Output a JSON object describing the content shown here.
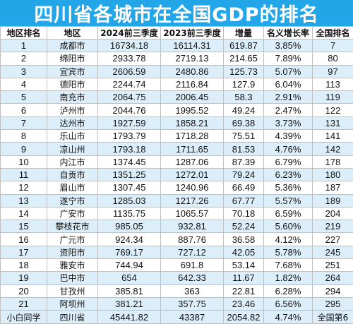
{
  "title": "四川省各城市在全国GDP的排名",
  "headers": [
    "地区排名",
    "地区",
    "2024前三季度",
    "2023前三季度",
    "增量",
    "名义增长率",
    "全国排名"
  ],
  "rows": [
    {
      "rank": "1",
      "city": "成都市",
      "gdp2024": "16734.18",
      "gdp2023": "16114.31",
      "increase": "619.87",
      "growth": "3.85%",
      "national": "7"
    },
    {
      "rank": "2",
      "city": "绵阳市",
      "gdp2024": "2933.78",
      "gdp2023": "2719.13",
      "increase": "214.65",
      "growth": "7.89%",
      "national": "80"
    },
    {
      "rank": "3",
      "city": "宜宾市",
      "gdp2024": "2606.59",
      "gdp2023": "2480.86",
      "increase": "125.73",
      "growth": "5.07%",
      "national": "97"
    },
    {
      "rank": "4",
      "city": "德阳市",
      "gdp2024": "2244.74",
      "gdp2023": "2116.84",
      "increase": "127.9",
      "growth": "6.04%",
      "national": "113"
    },
    {
      "rank": "5",
      "city": "南充市",
      "gdp2024": "2064.75",
      "gdp2023": "2006.45",
      "increase": "58.3",
      "growth": "2.91%",
      "national": "119"
    },
    {
      "rank": "6",
      "city": "泸州市",
      "gdp2024": "2044.76",
      "gdp2023": "1995.52",
      "increase": "49.24",
      "growth": "2.47%",
      "national": "122"
    },
    {
      "rank": "7",
      "city": "达州市",
      "gdp2024": "1927.59",
      "gdp2023": "1858.21",
      "increase": "69.38",
      "growth": "3.73%",
      "national": "131"
    },
    {
      "rank": "8",
      "city": "乐山市",
      "gdp2024": "1793.79",
      "gdp2023": "1718.28",
      "increase": "75.51",
      "growth": "4.39%",
      "national": "141"
    },
    {
      "rank": "9",
      "city": "凉山州",
      "gdp2024": "1793.18",
      "gdp2023": "1711.65",
      "increase": "81.53",
      "growth": "4.76%",
      "national": "142"
    },
    {
      "rank": "10",
      "city": "内江市",
      "gdp2024": "1374.45",
      "gdp2023": "1287.06",
      "increase": "87.39",
      "growth": "6.79%",
      "national": "178"
    },
    {
      "rank": "11",
      "city": "自贡市",
      "gdp2024": "1351.25",
      "gdp2023": "1272.01",
      "increase": "79.24",
      "growth": "6.23%",
      "national": "180"
    },
    {
      "rank": "12",
      "city": "眉山市",
      "gdp2024": "1307.45",
      "gdp2023": "1240.96",
      "increase": "66.49",
      "growth": "5.36%",
      "national": "187"
    },
    {
      "rank": "13",
      "city": "遂宁市",
      "gdp2024": "1285.03",
      "gdp2023": "1217.26",
      "increase": "67.77",
      "growth": "5.57%",
      "national": "189"
    },
    {
      "rank": "14",
      "city": "广安市",
      "gdp2024": "1135.75",
      "gdp2023": "1065.57",
      "increase": "70.18",
      "growth": "6.59%",
      "national": "204"
    },
    {
      "rank": "15",
      "city": "攀枝花市",
      "gdp2024": "985.05",
      "gdp2023": "932.81",
      "increase": "52.24",
      "growth": "5.60%",
      "national": "219"
    },
    {
      "rank": "16",
      "city": "广元市",
      "gdp2024": "924.34",
      "gdp2023": "887.76",
      "increase": "36.58",
      "growth": "4.12%",
      "national": "227"
    },
    {
      "rank": "17",
      "city": "资阳市",
      "gdp2024": "769.17",
      "gdp2023": "727.12",
      "increase": "42.05",
      "growth": "5.78%",
      "national": "245"
    },
    {
      "rank": "18",
      "city": "雅安市",
      "gdp2024": "744.94",
      "gdp2023": "691.8",
      "increase": "53.14",
      "growth": "7.68%",
      "national": "251"
    },
    {
      "rank": "19",
      "city": "巴中市",
      "gdp2024": "654",
      "gdp2023": "642.33",
      "increase": "11.67",
      "growth": "1.82%",
      "national": "264"
    },
    {
      "rank": "20",
      "city": "甘孜州",
      "gdp2024": "385.81",
      "gdp2023": "363",
      "increase": "22.81",
      "growth": "6.28%",
      "national": "294"
    },
    {
      "rank": "21",
      "city": "阿坝州",
      "gdp2024": "381.21",
      "gdp2023": "357.75",
      "increase": "23.46",
      "growth": "6.56%",
      "national": "295"
    }
  ],
  "footer": {
    "rank": "小白同学",
    "city": "四川省",
    "gdp2024": "45441.82",
    "gdp2023": "43387",
    "increase": "2054.82",
    "growth": "4.74%",
    "national": "全国第6"
  },
  "colors": {
    "title_bg": "#22a6e8",
    "stripe": "#dceef9",
    "border": "#bfbfbf"
  }
}
